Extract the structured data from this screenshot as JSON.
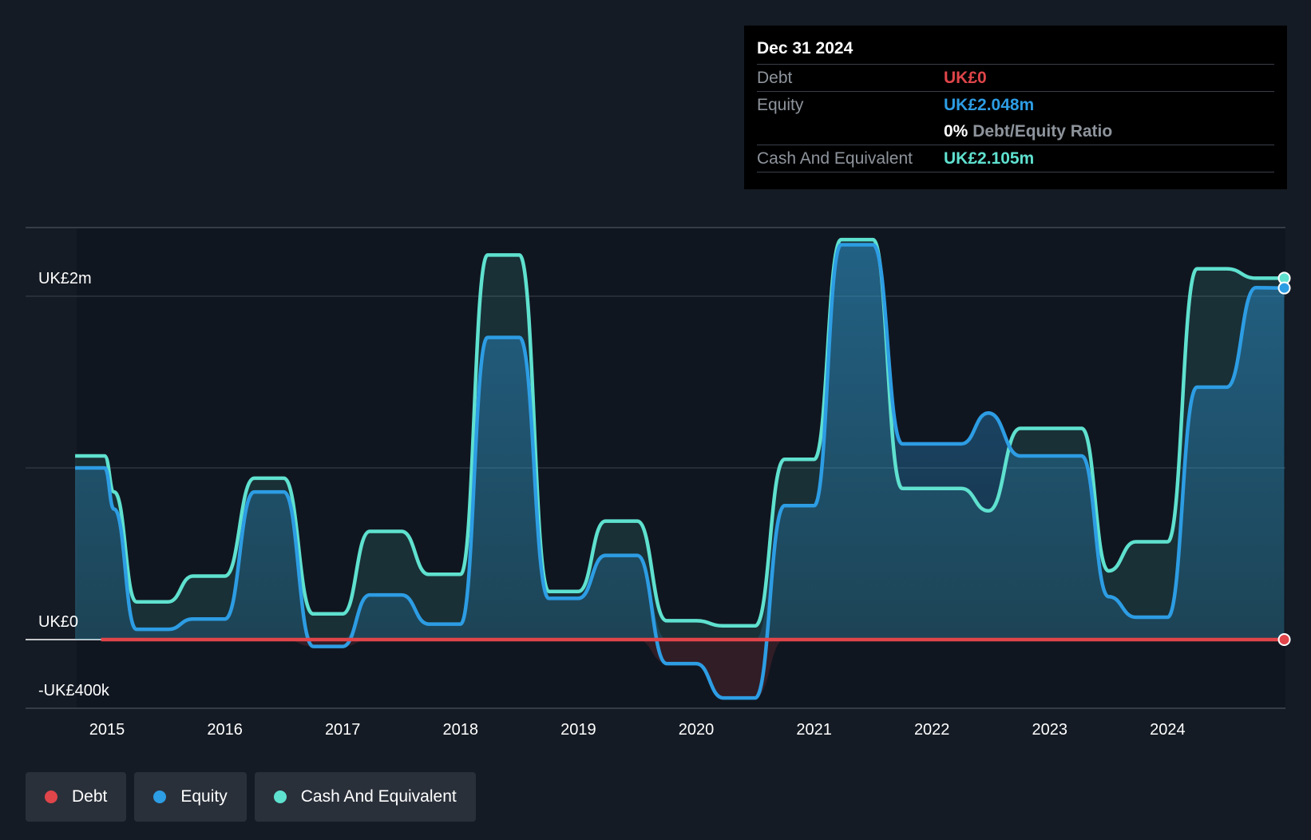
{
  "colors": {
    "debt": "#e0454a",
    "equity": "#2d9de4",
    "cash": "#5fe1cf",
    "background": "#151b24"
  },
  "tooltip": {
    "date": "Dec 31 2024",
    "debt_label": "Debt",
    "debt_value": "UK£0",
    "equity_label": "Equity",
    "equity_value": "UK£2.048m",
    "ratio_value": "0%",
    "ratio_label": "Debt/Equity Ratio",
    "cash_label": "Cash And Equivalent",
    "cash_value": "UK£2.105m"
  },
  "legend": [
    {
      "name": "Debt",
      "color": "#e0454a"
    },
    {
      "name": "Equity",
      "color": "#2d9de4"
    },
    {
      "name": "Cash And Equivalent",
      "color": "#5fe1cf"
    }
  ],
  "chart_data": {
    "type": "area",
    "title": "",
    "xlabel": "",
    "ylabel": "",
    "ylim": [
      -400000,
      2400000
    ],
    "xlim": [
      2014.25,
      2024.99
    ],
    "y_tick_labels": [
      {
        "value": 2000000,
        "label": "UK£2m"
      },
      {
        "value": 0,
        "label": "UK£0"
      },
      {
        "value": -400000,
        "label": "-UK£400k"
      }
    ],
    "x_ticks": [
      "2015",
      "2016",
      "2017",
      "2018",
      "2019",
      "2020",
      "2021",
      "2022",
      "2023",
      "2024"
    ],
    "grid": true,
    "legend_position": "bottom-left",
    "series": [
      {
        "name": "Debt",
        "x": [
          2014.95,
          2024.99
        ],
        "values": [
          0,
          0
        ]
      },
      {
        "name": "Equity",
        "x": [
          2014.73,
          2014.98,
          2015.06,
          2015.25,
          2015.52,
          2015.73,
          2016.0,
          2016.25,
          2016.5,
          2016.75,
          2017.0,
          2017.23,
          2017.5,
          2017.73,
          2018.0,
          2018.23,
          2018.5,
          2018.75,
          2019.0,
          2019.23,
          2019.5,
          2019.75,
          2020.0,
          2020.23,
          2020.5,
          2020.75,
          2021.0,
          2021.23,
          2021.5,
          2021.75,
          2022.0,
          2022.25,
          2022.48,
          2022.75,
          2023.0,
          2023.27,
          2023.5,
          2023.73,
          2024.0,
          2024.25,
          2024.5,
          2024.75,
          2024.99
        ],
        "values": [
          1000000,
          1000000,
          760000,
          60000,
          60000,
          120000,
          120000,
          860000,
          860000,
          -40000,
          -40000,
          260000,
          260000,
          90000,
          90000,
          1760000,
          1760000,
          240000,
          240000,
          490000,
          490000,
          -140000,
          -140000,
          -340000,
          -340000,
          780000,
          780000,
          2300000,
          2300000,
          1140000,
          1140000,
          1140000,
          1320000,
          1070000,
          1070000,
          1070000,
          250000,
          130000,
          130000,
          1470000,
          1470000,
          2050000,
          2048000
        ]
      },
      {
        "name": "Cash And Equivalent",
        "x": [
          2014.73,
          2014.98,
          2015.06,
          2015.25,
          2015.52,
          2015.73,
          2016.0,
          2016.25,
          2016.5,
          2016.75,
          2017.0,
          2017.23,
          2017.5,
          2017.73,
          2018.0,
          2018.23,
          2018.5,
          2018.75,
          2019.0,
          2019.23,
          2019.5,
          2019.75,
          2020.0,
          2020.23,
          2020.5,
          2020.75,
          2021.0,
          2021.23,
          2021.5,
          2021.75,
          2022.0,
          2022.25,
          2022.48,
          2022.75,
          2023.0,
          2023.27,
          2023.5,
          2023.73,
          2024.0,
          2024.25,
          2024.5,
          2024.75,
          2024.99
        ],
        "values": [
          1070000,
          1070000,
          860000,
          220000,
          220000,
          370000,
          370000,
          940000,
          940000,
          150000,
          150000,
          630000,
          630000,
          380000,
          380000,
          2240000,
          2240000,
          280000,
          280000,
          690000,
          690000,
          110000,
          110000,
          80000,
          80000,
          1050000,
          1050000,
          2330000,
          2330000,
          880000,
          880000,
          880000,
          750000,
          1230000,
          1230000,
          1230000,
          400000,
          570000,
          570000,
          2160000,
          2160000,
          2105000,
          2105000
        ]
      }
    ]
  }
}
